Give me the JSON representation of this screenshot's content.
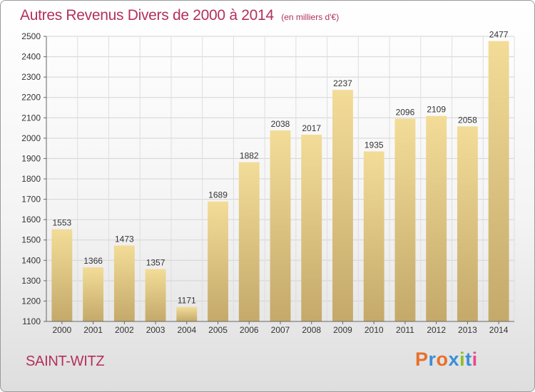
{
  "chart_data": {
    "type": "bar",
    "title": "Autres Revenus Divers de 2000 à 2014",
    "unit_note": "(en milliers d'€)",
    "categories": [
      "2000",
      "2001",
      "2002",
      "2003",
      "2004",
      "2005",
      "2006",
      "2007",
      "2008",
      "2009",
      "2010",
      "2011",
      "2012",
      "2013",
      "2014"
    ],
    "values": [
      1553,
      1366,
      1473,
      1357,
      1171,
      1689,
      1882,
      2038,
      2017,
      2237,
      1935,
      2096,
      2109,
      2058,
      2477
    ],
    "ylim": [
      1100,
      2500
    ],
    "yticks": [
      1100,
      1200,
      1300,
      1400,
      1500,
      1600,
      1700,
      1800,
      1900,
      2000,
      2100,
      2200,
      2300,
      2400,
      2500
    ],
    "grid": true,
    "bar_color_top": "#f3dc98",
    "bar_color_bottom": "#c4a96a"
  },
  "location": "SAINT-WITZ",
  "logo": {
    "letters": [
      {
        "char": "P",
        "color": "#e8702a"
      },
      {
        "char": "r",
        "color": "#3a8fd8"
      },
      {
        "char": "o",
        "color": "#e8702a"
      },
      {
        "char": "x",
        "color": "#3a8fd8"
      },
      {
        "char": "i",
        "color": "#8cbf2a"
      },
      {
        "char": "t",
        "color": "#3a8fd8"
      },
      {
        "char": "i",
        "color": "#e84a8a"
      }
    ]
  }
}
